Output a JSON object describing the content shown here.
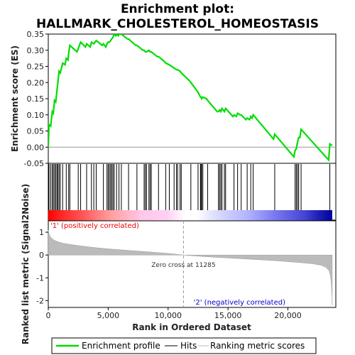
{
  "chart_data": {
    "type": "line",
    "title_line1": "Enrichment plot:",
    "title_line2": "HALLMARK_CHOLESTEROL_HOMEOSTASIS",
    "es_ylabel": "Enrichment score (ES)",
    "metric_ylabel": "Ranked list metric (Signal2Noise)",
    "xlabel": "Rank in Ordered Dataset",
    "x_ticks": [
      "0",
      "5,000",
      "10,000",
      "15,000",
      "20,000"
    ],
    "x_tick_values": [
      0,
      5000,
      10000,
      15000,
      20000
    ],
    "x_range": [
      0,
      24000
    ],
    "es_ylim": [
      -0.05,
      0.35
    ],
    "es_y_ticks": [
      "-0.05",
      "0.00",
      "0.05",
      "0.10",
      "0.15",
      "0.20",
      "0.25",
      "0.30",
      "0.35"
    ],
    "es_y_tick_values": [
      -0.05,
      0,
      0.05,
      0.1,
      0.15,
      0.2,
      0.25,
      0.3,
      0.35
    ],
    "metric_ylim": [
      -2.3,
      1.5
    ],
    "metric_y_ticks": [
      "1",
      "0",
      "-1",
      "-2"
    ],
    "metric_y_tick_values": [
      1,
      0,
      -1,
      -2
    ],
    "zero_cross_label": "Zero cross at 11285",
    "zero_cross": 11285,
    "pos_label": "'1' (positively correlated)",
    "neg_label": "'2' (negatively correlated)",
    "total_genes": 23700,
    "colors": {
      "es_line": "#00dd00",
      "hits": "#000000",
      "metric": "#bbbbbb",
      "pos_text": "#ee0000",
      "neg_text": "#0000cc"
    },
    "legend": [
      "Enrichment profile",
      "Hits",
      "Ranking metric scores"
    ],
    "hits": [
      60,
      200,
      330,
      420,
      520,
      620,
      720,
      800,
      900,
      1000,
      1200,
      1500,
      1700,
      1800,
      2500,
      2700,
      3200,
      3600,
      3800,
      4000,
      4600,
      4900,
      5000,
      5100,
      5200,
      5300,
      5400,
      5500,
      5700,
      5900,
      6100,
      6700,
      7400,
      8000,
      8100,
      8200,
      8400,
      8500,
      8600,
      9200,
      9800,
      10100,
      10500,
      10700,
      10800,
      11000,
      11100,
      11900,
      12500,
      12700,
      12750,
      12800,
      12900,
      13300,
      14200,
      14300,
      14400,
      14500,
      14700,
      14800,
      15500,
      15800,
      16100,
      16600,
      16900,
      17100,
      18900,
      20600,
      20700,
      20800,
      20900,
      21100,
      23500
    ],
    "es_points": [
      [
        0,
        0.0
      ],
      [
        60,
        0.07
      ],
      [
        200,
        0.065
      ],
      [
        330,
        0.11
      ],
      [
        420,
        0.105
      ],
      [
        520,
        0.145
      ],
      [
        620,
        0.14
      ],
      [
        720,
        0.175
      ],
      [
        800,
        0.2
      ],
      [
        900,
        0.235
      ],
      [
        1000,
        0.23
      ],
      [
        1200,
        0.26
      ],
      [
        1400,
        0.255
      ],
      [
        1500,
        0.275
      ],
      [
        1650,
        0.27
      ],
      [
        1700,
        0.29
      ],
      [
        1800,
        0.315
      ],
      [
        2400,
        0.295
      ],
      [
        2500,
        0.305
      ],
      [
        2700,
        0.325
      ],
      [
        3100,
        0.31
      ],
      [
        3200,
        0.32
      ],
      [
        3500,
        0.31
      ],
      [
        3600,
        0.325
      ],
      [
        3800,
        0.32
      ],
      [
        4000,
        0.33
      ],
      [
        4500,
        0.315
      ],
      [
        4600,
        0.32
      ],
      [
        4800,
        0.31
      ],
      [
        4900,
        0.32
      ],
      [
        5000,
        0.325
      ],
      [
        5100,
        0.325
      ],
      [
        5200,
        0.33
      ],
      [
        5300,
        0.335
      ],
      [
        5400,
        0.34
      ],
      [
        5500,
        0.35
      ],
      [
        5650,
        0.345
      ],
      [
        5700,
        0.35
      ],
      [
        5850,
        0.345
      ],
      [
        5900,
        0.35
      ],
      [
        6100,
        0.35
      ],
      [
        6600,
        0.335
      ],
      [
        6700,
        0.335
      ],
      [
        7300,
        0.315
      ],
      [
        7400,
        0.315
      ],
      [
        7900,
        0.3
      ],
      [
        8000,
        0.3
      ],
      [
        8100,
        0.295
      ],
      [
        8200,
        0.295
      ],
      [
        8400,
        0.3
      ],
      [
        8500,
        0.295
      ],
      [
        8600,
        0.295
      ],
      [
        9100,
        0.28
      ],
      [
        9200,
        0.28
      ],
      [
        9700,
        0.265
      ],
      [
        9800,
        0.26
      ],
      [
        10100,
        0.255
      ],
      [
        10500,
        0.245
      ],
      [
        10700,
        0.24
      ],
      [
        10800,
        0.24
      ],
      [
        11000,
        0.235
      ],
      [
        11100,
        0.23
      ],
      [
        11800,
        0.205
      ],
      [
        11900,
        0.2
      ],
      [
        12400,
        0.175
      ],
      [
        12500,
        0.17
      ],
      [
        12700,
        0.155
      ],
      [
        12750,
        0.155
      ],
      [
        12800,
        0.15
      ],
      [
        12900,
        0.155
      ],
      [
        13200,
        0.15
      ],
      [
        13300,
        0.145
      ],
      [
        14100,
        0.11
      ],
      [
        14200,
        0.11
      ],
      [
        14300,
        0.115
      ],
      [
        14400,
        0.11
      ],
      [
        14500,
        0.12
      ],
      [
        14700,
        0.11
      ],
      [
        14800,
        0.12
      ],
      [
        15400,
        0.095
      ],
      [
        15500,
        0.1
      ],
      [
        15700,
        0.095
      ],
      [
        15800,
        0.105
      ],
      [
        16000,
        0.1
      ],
      [
        16100,
        0.1
      ],
      [
        16500,
        0.085
      ],
      [
        16600,
        0.09
      ],
      [
        16800,
        0.085
      ],
      [
        16900,
        0.095
      ],
      [
        17000,
        0.09
      ],
      [
        17100,
        0.1
      ],
      [
        18800,
        0.025
      ],
      [
        18900,
        0.04
      ],
      [
        20500,
        -0.03
      ],
      [
        20600,
        -0.01
      ],
      [
        20700,
        -0.005
      ],
      [
        20800,
        0.015
      ],
      [
        20900,
        0.03
      ],
      [
        21000,
        0.03
      ],
      [
        21100,
        0.055
      ],
      [
        23400,
        -0.04
      ],
      [
        23500,
        0.01
      ],
      [
        23700,
        0.005
      ]
    ],
    "metric_points": [
      [
        0,
        1.1
      ],
      [
        50,
        0.95
      ],
      [
        150,
        0.82
      ],
      [
        300,
        0.72
      ],
      [
        500,
        0.65
      ],
      [
        800,
        0.58
      ],
      [
        1200,
        0.52
      ],
      [
        2000,
        0.45
      ],
      [
        3000,
        0.38
      ],
      [
        4000,
        0.32
      ],
      [
        5000,
        0.27
      ],
      [
        6000,
        0.23
      ],
      [
        7000,
        0.19
      ],
      [
        8000,
        0.15
      ],
      [
        9000,
        0.11
      ],
      [
        10000,
        0.07
      ],
      [
        11285,
        0.0
      ],
      [
        12000,
        -0.03
      ],
      [
        13000,
        -0.07
      ],
      [
        14000,
        -0.1
      ],
      [
        15000,
        -0.13
      ],
      [
        16000,
        -0.16
      ],
      [
        17000,
        -0.19
      ],
      [
        18000,
        -0.22
      ],
      [
        19000,
        -0.25
      ],
      [
        20000,
        -0.29
      ],
      [
        21000,
        -0.33
      ],
      [
        22000,
        -0.38
      ],
      [
        22800,
        -0.45
      ],
      [
        23200,
        -0.55
      ],
      [
        23450,
        -0.7
      ],
      [
        23550,
        -0.9
      ],
      [
        23620,
        -1.2
      ],
      [
        23680,
        -1.8
      ],
      [
        23700,
        -2.2
      ]
    ],
    "color_bar_stops": [
      [
        0,
        "#ff0000"
      ],
      [
        0.05,
        "#ff2a2a"
      ],
      [
        0.12,
        "#ff5555"
      ],
      [
        0.22,
        "#ff9f9f"
      ],
      [
        0.33,
        "#ffc8e8"
      ],
      [
        0.42,
        "#ffd0f4"
      ],
      [
        0.48,
        "#ffffff"
      ],
      [
        0.52,
        "#ffffff"
      ],
      [
        0.6,
        "#d8d8ff"
      ],
      [
        0.7,
        "#b4b4ff"
      ],
      [
        0.8,
        "#7878ee"
      ],
      [
        0.9,
        "#4646d6"
      ],
      [
        0.95,
        "#2020b8"
      ],
      [
        1,
        "#0000a0"
      ]
    ]
  }
}
